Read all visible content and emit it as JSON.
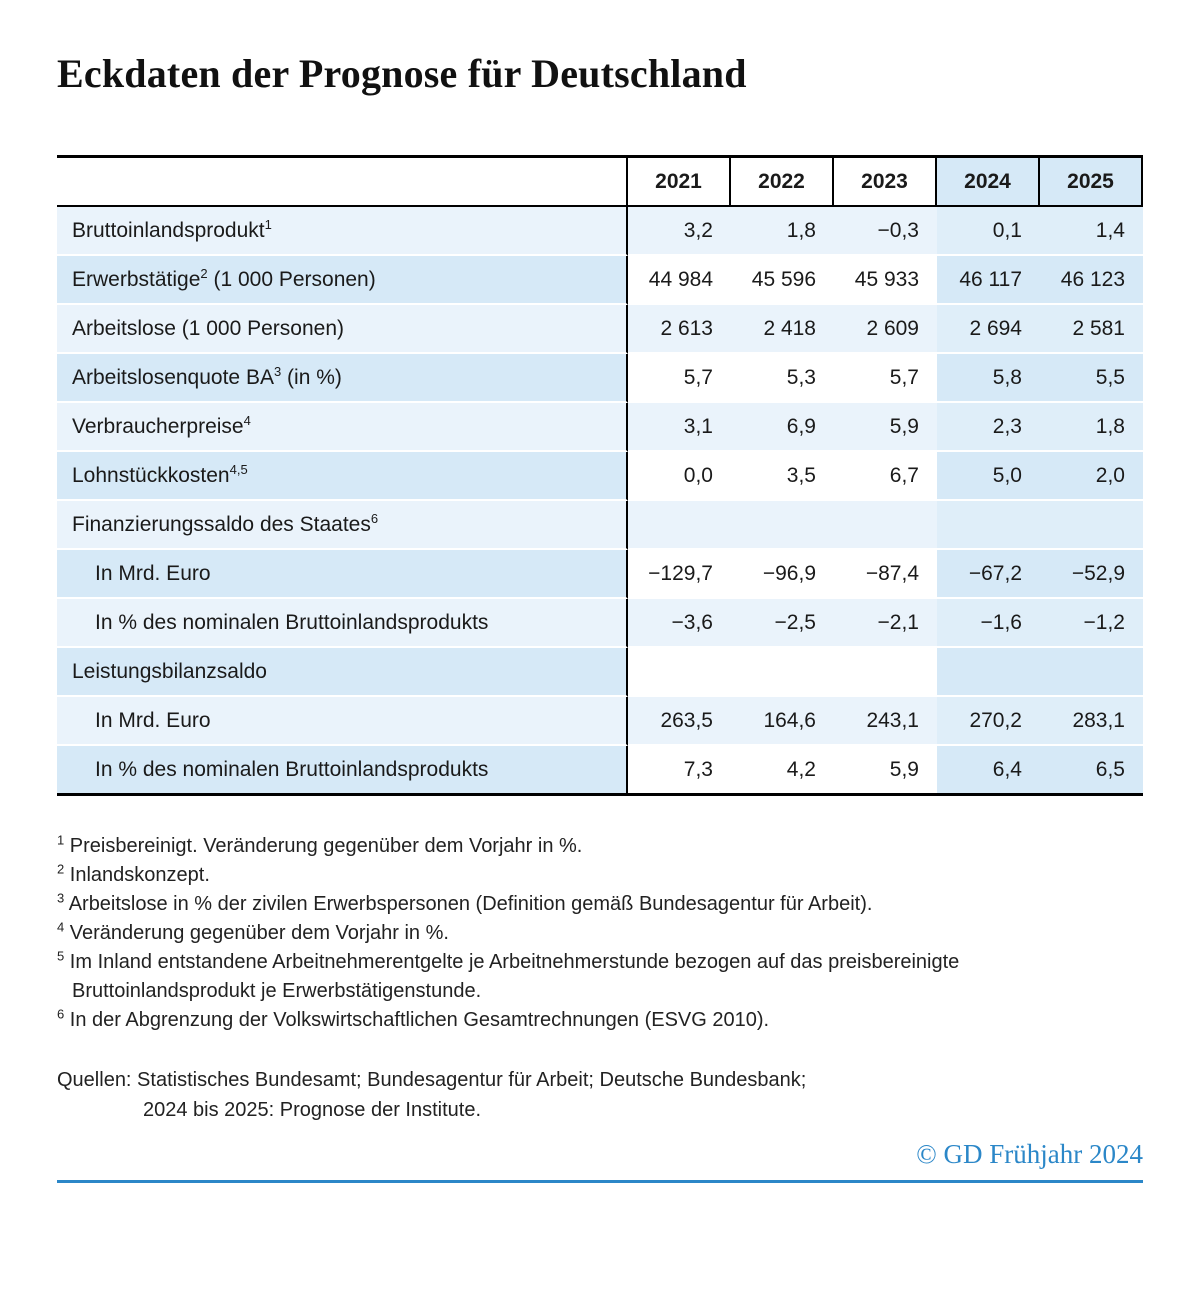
{
  "title": "Eckdaten der Prognose für Deutschland",
  "copyright": "© GD Frühjahr 2024",
  "colors": {
    "accent_blue": "#2b87c8",
    "row_light_blue": "#eaf3fb",
    "row_medium_blue": "#d6e9f7",
    "row_forecast_light": "#dfeef9",
    "border_black": "#000000"
  },
  "chart_data": {
    "type": "table",
    "title": "Eckdaten der Prognose für Deutschland",
    "columns": [
      "2021",
      "2022",
      "2023",
      "2024",
      "2025"
    ],
    "forecast_columns": [
      "2024",
      "2025"
    ],
    "rows": [
      {
        "label": "Bruttoinlandsprodukt",
        "sup": "1",
        "post": "",
        "indent": false,
        "values": [
          "3,2",
          "1,8",
          "−0,3",
          "0,1",
          "1,4"
        ]
      },
      {
        "label": "Erwerbstätige",
        "sup": "2",
        "post": " (1 000 Personen)",
        "indent": false,
        "values": [
          "44 984",
          "45 596",
          "45 933",
          "46 117",
          "46 123"
        ]
      },
      {
        "label": "Arbeitslose (1 000 Personen)",
        "sup": "",
        "post": "",
        "indent": false,
        "values": [
          "2 613",
          "2 418",
          "2 609",
          "2 694",
          "2 581"
        ]
      },
      {
        "label": "Arbeitslosenquote BA",
        "sup": "3",
        "post": " (in %)",
        "indent": false,
        "values": [
          "5,7",
          "5,3",
          "5,7",
          "5,8",
          "5,5"
        ]
      },
      {
        "label": "Verbraucherpreise",
        "sup": "4",
        "post": "",
        "indent": false,
        "values": [
          "3,1",
          "6,9",
          "5,9",
          "2,3",
          "1,8"
        ]
      },
      {
        "label": "Lohnstückkosten",
        "sup": "4,5",
        "post": "",
        "indent": false,
        "values": [
          "0,0",
          "3,5",
          "6,7",
          "5,0",
          "2,0"
        ]
      },
      {
        "label": "Finanzierungssaldo des Staates",
        "sup": "6",
        "post": "",
        "indent": false,
        "values": [
          "",
          "",
          "",
          "",
          ""
        ]
      },
      {
        "label": "In Mrd. Euro",
        "sup": "",
        "post": "",
        "indent": true,
        "values": [
          "−129,7",
          "−96,9",
          "−87,4",
          "−67,2",
          "−52,9"
        ]
      },
      {
        "label": "In % des nominalen Bruttoinlandsprodukts",
        "sup": "",
        "post": "",
        "indent": true,
        "values": [
          "−3,6",
          "−2,5",
          "−2,1",
          "−1,6",
          "−1,2"
        ]
      },
      {
        "label": "Leistungsbilanzsaldo",
        "sup": "",
        "post": "",
        "indent": false,
        "values": [
          "",
          "",
          "",
          "",
          ""
        ]
      },
      {
        "label": "In Mrd. Euro",
        "sup": "",
        "post": "",
        "indent": true,
        "values": [
          "263,5",
          "164,6",
          "243,1",
          "270,2",
          "283,1"
        ]
      },
      {
        "label": "In % des nominalen Bruttoinlandsprodukts",
        "sup": "",
        "post": "",
        "indent": true,
        "values": [
          "7,3",
          "4,2",
          "5,9",
          "6,4",
          "6,5"
        ]
      }
    ]
  },
  "footnotes": [
    {
      "marker": "1",
      "text": "Preisbereinigt. Veränderung gegenüber dem Vorjahr in %."
    },
    {
      "marker": "2",
      "text": "Inlandskonzept."
    },
    {
      "marker": "3",
      "text": "Arbeitslose in % der zivilen Erwerbspersonen (Definition gemäß Bundesagentur für Arbeit)."
    },
    {
      "marker": "4",
      "text": "Veränderung gegenüber dem Vorjahr in %."
    },
    {
      "marker": "5",
      "text": "Im Inland entstandene Arbeitnehmerentgelte je Arbeitnehmerstunde bezogen auf das preisbereinigte Bruttoinlandsprodukt je Erwerbstätigenstunde."
    },
    {
      "marker": "6",
      "text": "In der Abgrenzung der Volkswirtschaftlichen Gesamtrechnungen (ESVG 2010)."
    }
  ],
  "sources": {
    "line1": "Quellen: Statistisches Bundesamt; Bundesagentur für Arbeit; Deutsche Bundesbank;",
    "line2": "2024 bis 2025: Prognose der Institute."
  }
}
